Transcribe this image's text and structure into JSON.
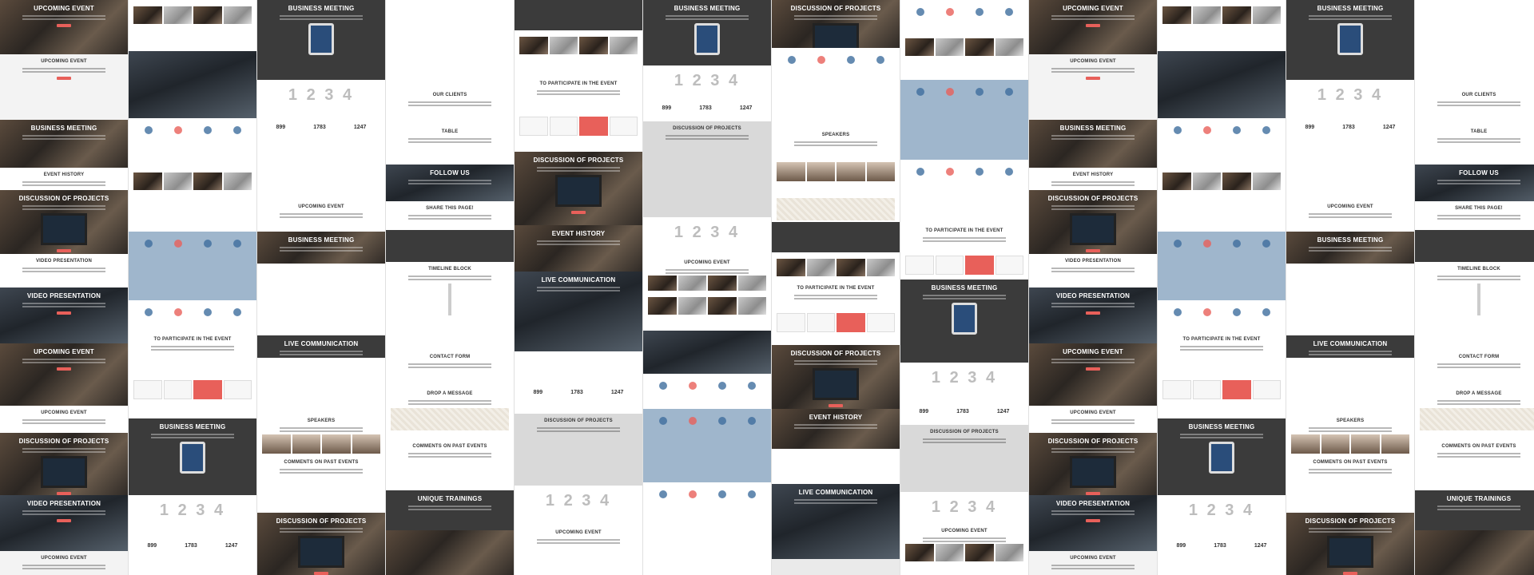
{
  "colors": {
    "accent": "#e8605a",
    "dark": "#3b3b3b",
    "blue_panel": "#9fb6cc",
    "icon_blue": "#3f6e9e",
    "light_bg": "#f3f3f3"
  },
  "columns": [
    {
      "blocks": [
        {
          "type": "photo",
          "h": 68,
          "title": "UPCOMING EVENT",
          "btn": true
        },
        {
          "type": "light",
          "h": 82,
          "title": "UPCOMING EVENT",
          "btn": true
        },
        {
          "type": "photo",
          "h": 60,
          "title": "BUSINESS MEETING"
        },
        {
          "type": "white",
          "h": 28,
          "title": "EVENT HISTORY"
        },
        {
          "type": "photo",
          "h": 80,
          "title": "DISCUSSION OF PROJECTS",
          "btn": true
        },
        {
          "type": "white",
          "h": 42,
          "title": "VIDEO PRESENTATION"
        },
        {
          "type": "photo2",
          "h": 70,
          "title": "VIDEO PRESENTATION",
          "btn": true
        },
        {
          "type": "photo",
          "h": 78,
          "title": "UPCOMING EVENT",
          "btn": true
        },
        {
          "type": "white",
          "h": 34,
          "title": "UPCOMING EVENT"
        },
        {
          "type": "photo",
          "h": 78,
          "title": "DISCUSSION OF PROJECTS",
          "btn": true
        },
        {
          "type": "photo2",
          "h": 70,
          "title": "VIDEO PRESENTATION",
          "btn": true
        },
        {
          "type": "light",
          "h": 30,
          "title": "UPCOMING EVENT"
        }
      ]
    },
    {
      "blocks": [
        {
          "type": "thumbs",
          "h": 64
        },
        {
          "type": "photo2",
          "h": 84
        },
        {
          "type": "icons",
          "h": 60
        },
        {
          "type": "thumbs",
          "h": 82
        },
        {
          "type": "blue",
          "h": 86
        },
        {
          "type": "icons",
          "h": 40
        },
        {
          "type": "white",
          "h": 50,
          "title": "TO PARTICIPATE IN THE EVENT"
        },
        {
          "type": "price",
          "h": 58
        },
        {
          "type": "dark",
          "h": 96,
          "title": "BUSINESS MEETING"
        },
        {
          "type": "digits",
          "h": 50,
          "digits": "1 2 3 4"
        },
        {
          "type": "stats",
          "h": 50,
          "stats": [
            "899",
            "1783",
            "1247"
          ]
        }
      ]
    },
    {
      "blocks": [
        {
          "type": "dark",
          "h": 100,
          "title": "BUSINESS MEETING"
        },
        {
          "type": "digits",
          "h": 46,
          "digits": "1 2 3 4"
        },
        {
          "type": "stats",
          "h": 40,
          "stats": [
            "899",
            "1783",
            "1247"
          ]
        },
        {
          "type": "white",
          "h": 64
        },
        {
          "type": "white",
          "h": 40,
          "title": "UPCOMING EVENT"
        },
        {
          "type": "photo",
          "h": 40,
          "title": "BUSINESS MEETING"
        },
        {
          "type": "white",
          "h": 90
        },
        {
          "type": "dark",
          "h": 28,
          "title": "LIVE COMMUNICATION"
        },
        {
          "type": "white",
          "h": 70
        },
        {
          "type": "people",
          "h": 52,
          "title": "SPEAKERS"
        },
        {
          "type": "white",
          "h": 72,
          "title": "COMMENTS ON PAST EVENTS"
        },
        {
          "type": "photo",
          "h": 78,
          "title": "DISCUSSION OF PROJECTS",
          "btn": true
        }
      ]
    },
    {
      "blocks": [
        {
          "type": "white",
          "h": 110
        },
        {
          "type": "white",
          "h": 46,
          "title": "OUR CLIENTS"
        },
        {
          "type": "white",
          "h": 50,
          "title": "TABLE"
        },
        {
          "type": "photo2",
          "h": 46,
          "title": "FOLLOW US"
        },
        {
          "type": "white",
          "h": 36,
          "title": "SHARE THIS PAGE!"
        },
        {
          "type": "dark",
          "h": 40
        },
        {
          "type": "white",
          "h": 110,
          "title": "TIMELINE BLOCK"
        },
        {
          "type": "white",
          "h": 46,
          "title": "CONTACT FORM"
        },
        {
          "type": "map",
          "h": 66,
          "title": "DROP A MESSAGE"
        },
        {
          "type": "white",
          "h": 34,
          "title": "COMMENTS ON PAST EVENTS"
        },
        {
          "type": "white",
          "h": 30
        },
        {
          "type": "dark",
          "h": 50,
          "title": "UNIQUE TRAININGS"
        },
        {
          "type": "photo",
          "h": 56
        }
      ]
    },
    {
      "blocks": [
        {
          "type": "dark",
          "h": 38
        },
        {
          "type": "thumbs",
          "h": 58
        },
        {
          "type": "white",
          "h": 40,
          "title": "TO PARTICIPATE IN THE EVENT"
        },
        {
          "type": "price",
          "h": 54
        },
        {
          "type": "photo",
          "h": 92,
          "title": "DISCUSSION OF PROJECTS",
          "btn": true
        },
        {
          "type": "photo",
          "h": 58,
          "title": "EVENT HISTORY"
        },
        {
          "type": "photo2",
          "h": 100,
          "title": "LIVE COMMUNICATION"
        },
        {
          "type": "white",
          "h": 38
        },
        {
          "type": "stats",
          "h": 40,
          "stats": [
            "899",
            "1783",
            "1247"
          ]
        },
        {
          "type": "gray",
          "h": 90,
          "title": "DISCUSSION OF PROJECTS"
        },
        {
          "type": "digits",
          "h": 50,
          "digits": "1 2 3 4"
        },
        {
          "type": "white",
          "h": 62,
          "title": "UPCOMING EVENT"
        }
      ]
    },
    {
      "blocks": [
        {
          "type": "dark",
          "h": 82,
          "title": "BUSINESS MEETING"
        },
        {
          "type": "digits",
          "h": 40,
          "digits": "1 2 3 4"
        },
        {
          "type": "stats",
          "h": 30,
          "stats": [
            "899",
            "1783",
            "1247"
          ]
        },
        {
          "type": "gray",
          "h": 120,
          "title": "DISCUSSION OF PROJECTS"
        },
        {
          "type": "digits",
          "h": 48,
          "digits": "1 2 3 4"
        },
        {
          "type": "thumbs",
          "h": 44,
          "title": "UPCOMING EVENT"
        },
        {
          "type": "thumbs",
          "h": 50
        },
        {
          "type": "photo2",
          "h": 54
        },
        {
          "type": "icons",
          "h": 44
        },
        {
          "type": "blue",
          "h": 92
        },
        {
          "type": "icons",
          "h": 50
        },
        {
          "type": "white",
          "h": 66
        }
      ]
    },
    {
      "blocks": [
        {
          "type": "photo",
          "h": 60,
          "title": "DISCUSSION OF PROJECTS"
        },
        {
          "type": "icons",
          "h": 40
        },
        {
          "type": "white",
          "h": 60
        },
        {
          "type": "white",
          "h": 34,
          "title": "SPEAKERS"
        },
        {
          "type": "people",
          "h": 44
        },
        {
          "type": "map",
          "h": 40
        },
        {
          "type": "dark",
          "h": 38
        },
        {
          "type": "thumbs",
          "h": 36
        },
        {
          "type": "white",
          "h": 30,
          "title": "TO PARTICIPATE IN THE EVENT"
        },
        {
          "type": "price",
          "h": 50
        },
        {
          "type": "photo",
          "h": 80,
          "title": "DISCUSSION OF PROJECTS",
          "btn": true
        },
        {
          "type": "photo",
          "h": 50,
          "title": "EVENT HISTORY"
        },
        {
          "type": "white",
          "h": 44
        },
        {
          "type": "photo2",
          "h": 94,
          "title": "LIVE COMMUNICATION"
        }
      ]
    },
    {
      "blocks": [
        {
          "type": "icons",
          "h": 40
        },
        {
          "type": "thumbs",
          "h": 60
        },
        {
          "type": "blue",
          "h": 100
        },
        {
          "type": "icons",
          "h": 40
        },
        {
          "type": "white",
          "h": 40
        },
        {
          "type": "white",
          "h": 30,
          "title": "TO PARTICIPATE IN THE EVENT"
        },
        {
          "type": "price",
          "h": 40
        },
        {
          "type": "dark",
          "h": 104,
          "title": "BUSINESS MEETING"
        },
        {
          "type": "digits",
          "h": 48,
          "digits": "1 2 3 4"
        },
        {
          "type": "stats",
          "h": 30,
          "stats": [
            "899",
            "1783",
            "1247"
          ]
        },
        {
          "type": "gray",
          "h": 84,
          "title": "DISCUSSION OF PROJECTS"
        },
        {
          "type": "digits",
          "h": 40,
          "digits": "1 2 3 4"
        },
        {
          "type": "thumbs",
          "h": 64,
          "title": "UPCOMING EVENT"
        }
      ]
    },
    {
      "blocks": [
        {
          "type": "photo",
          "h": 68,
          "title": "UPCOMING EVENT",
          "btn": true
        },
        {
          "type": "light",
          "h": 82,
          "title": "UPCOMING EVENT",
          "btn": true
        },
        {
          "type": "photo",
          "h": 60,
          "title": "BUSINESS MEETING"
        },
        {
          "type": "white",
          "h": 28,
          "title": "EVENT HISTORY"
        },
        {
          "type": "photo",
          "h": 80,
          "title": "DISCUSSION OF PROJECTS",
          "btn": true
        },
        {
          "type": "white",
          "h": 42,
          "title": "VIDEO PRESENTATION"
        },
        {
          "type": "photo2",
          "h": 70,
          "title": "VIDEO PRESENTATION",
          "btn": true
        },
        {
          "type": "photo",
          "h": 78,
          "title": "UPCOMING EVENT",
          "btn": true
        },
        {
          "type": "white",
          "h": 34,
          "title": "UPCOMING EVENT"
        },
        {
          "type": "photo",
          "h": 78,
          "title": "DISCUSSION OF PROJECTS",
          "btn": true
        },
        {
          "type": "photo2",
          "h": 70,
          "title": "VIDEO PRESENTATION",
          "btn": true
        },
        {
          "type": "light",
          "h": 30,
          "title": "UPCOMING EVENT"
        }
      ]
    },
    {
      "blocks": [
        {
          "type": "thumbs",
          "h": 64
        },
        {
          "type": "photo2",
          "h": 84
        },
        {
          "type": "icons",
          "h": 60
        },
        {
          "type": "thumbs",
          "h": 82
        },
        {
          "type": "blue",
          "h": 86
        },
        {
          "type": "icons",
          "h": 40
        },
        {
          "type": "white",
          "h": 50,
          "title": "TO PARTICIPATE IN THE EVENT"
        },
        {
          "type": "price",
          "h": 58
        },
        {
          "type": "dark",
          "h": 96,
          "title": "BUSINESS MEETING"
        },
        {
          "type": "digits",
          "h": 50,
          "digits": "1 2 3 4"
        },
        {
          "type": "stats",
          "h": 50,
          "stats": [
            "899",
            "1783",
            "1247"
          ]
        }
      ]
    },
    {
      "blocks": [
        {
          "type": "dark",
          "h": 100,
          "title": "BUSINESS MEETING"
        },
        {
          "type": "digits",
          "h": 46,
          "digits": "1 2 3 4"
        },
        {
          "type": "stats",
          "h": 40,
          "stats": [
            "899",
            "1783",
            "1247"
          ]
        },
        {
          "type": "white",
          "h": 64
        },
        {
          "type": "white",
          "h": 40,
          "title": "UPCOMING EVENT"
        },
        {
          "type": "photo",
          "h": 40,
          "title": "BUSINESS MEETING"
        },
        {
          "type": "white",
          "h": 90
        },
        {
          "type": "dark",
          "h": 28,
          "title": "LIVE COMMUNICATION"
        },
        {
          "type": "white",
          "h": 70
        },
        {
          "type": "people",
          "h": 52,
          "title": "SPEAKERS"
        },
        {
          "type": "white",
          "h": 72,
          "title": "COMMENTS ON PAST EVENTS"
        },
        {
          "type": "photo",
          "h": 78,
          "title": "DISCUSSION OF PROJECTS",
          "btn": true
        }
      ]
    },
    {
      "blocks": [
        {
          "type": "white",
          "h": 110
        },
        {
          "type": "white",
          "h": 46,
          "title": "OUR CLIENTS"
        },
        {
          "type": "white",
          "h": 50,
          "title": "TABLE"
        },
        {
          "type": "photo2",
          "h": 46,
          "title": "FOLLOW US"
        },
        {
          "type": "white",
          "h": 36,
          "title": "SHARE THIS PAGE!"
        },
        {
          "type": "dark",
          "h": 40
        },
        {
          "type": "white",
          "h": 110,
          "title": "TIMELINE BLOCK"
        },
        {
          "type": "white",
          "h": 46,
          "title": "CONTACT FORM"
        },
        {
          "type": "map",
          "h": 66,
          "title": "DROP A MESSAGE"
        },
        {
          "type": "white",
          "h": 34,
          "title": "COMMENTS ON PAST EVENTS"
        },
        {
          "type": "white",
          "h": 30
        },
        {
          "type": "dark",
          "h": 50,
          "title": "UNIQUE TRAININGS"
        },
        {
          "type": "photo",
          "h": 56
        }
      ]
    }
  ]
}
